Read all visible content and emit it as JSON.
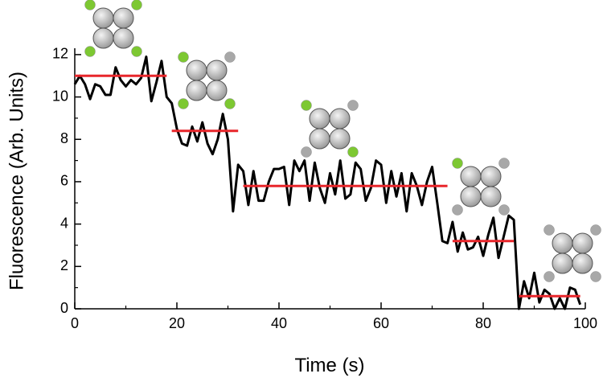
{
  "chart_data": {
    "type": "line",
    "xlabel": "Time (s)",
    "ylabel": "Fluorescence (Arb. Units)",
    "xlim": [
      0,
      100
    ],
    "xticks": [
      0,
      20,
      40,
      60,
      80,
      100
    ],
    "ylim": [
      0,
      12.3
    ],
    "yticks": [
      0,
      2,
      4,
      6,
      8,
      10,
      12
    ],
    "series": [
      {
        "color": "#000000",
        "x": [
          0,
          1,
          2,
          3,
          4,
          5,
          6,
          7,
          8,
          9,
          10,
          11,
          12,
          13,
          14,
          15,
          16,
          17,
          18,
          19,
          20,
          21,
          22,
          23,
          24,
          25,
          26,
          27,
          28,
          29,
          30,
          31,
          32,
          33,
          34,
          35,
          36,
          37,
          38,
          39,
          40,
          41,
          42,
          43,
          44,
          45,
          46,
          47,
          48,
          49,
          50,
          51,
          52,
          53,
          54,
          55,
          56,
          57,
          58,
          59,
          60,
          61,
          62,
          63,
          64,
          65,
          66,
          67,
          68,
          69,
          70,
          71,
          72,
          73,
          74,
          75,
          76,
          77,
          78,
          79,
          80,
          81,
          82,
          83,
          84,
          85,
          86,
          87,
          88,
          89,
          90,
          91,
          92,
          93,
          94,
          95,
          96,
          97,
          98,
          99
        ],
        "values": [
          10.6,
          11.0,
          10.6,
          9.9,
          10.6,
          10.5,
          10.1,
          10.1,
          11.4,
          10.8,
          10.5,
          10.8,
          10.6,
          10.9,
          11.9,
          9.8,
          10.7,
          11.7,
          10.0,
          9.7,
          8.5,
          7.8,
          7.7,
          8.6,
          7.9,
          8.8,
          7.8,
          7.3,
          8.0,
          9.2,
          8.0,
          4.6,
          6.8,
          6.5,
          4.9,
          6.5,
          5.1,
          5.1,
          6.0,
          6.6,
          6.6,
          6.7,
          4.9,
          7.0,
          6.5,
          7.0,
          5.1,
          6.9,
          5.7,
          5.0,
          6.4,
          5.4,
          7.0,
          5.2,
          5.4,
          6.9,
          6.6,
          5.1,
          5.7,
          7.0,
          6.8,
          5.0,
          6.5,
          5.3,
          6.4,
          4.6,
          6.4,
          5.8,
          4.9,
          6.0,
          6.7,
          5.0,
          3.2,
          3.1,
          4.1,
          2.7,
          3.6,
          2.8,
          2.9,
          3.4,
          2.5,
          3.5,
          4.3,
          2.4,
          3.4,
          4.4,
          4.2,
          0.0,
          1.3,
          0.5,
          1.7,
          0.3,
          0.9,
          0.7,
          0.0,
          0.5,
          0.0,
          1.0,
          0.9,
          0.2
        ]
      }
    ],
    "steps": {
      "color": "#e8262b",
      "segments": [
        {
          "x": [
            0,
            18
          ],
          "y": 11.0
        },
        {
          "x": [
            19,
            32
          ],
          "y": 8.4
        },
        {
          "x": [
            33,
            73
          ],
          "y": 5.8
        },
        {
          "x": [
            74,
            86
          ],
          "y": 3.2
        },
        {
          "x": [
            87,
            99
          ],
          "y": 0.6
        }
      ]
    }
  }
}
